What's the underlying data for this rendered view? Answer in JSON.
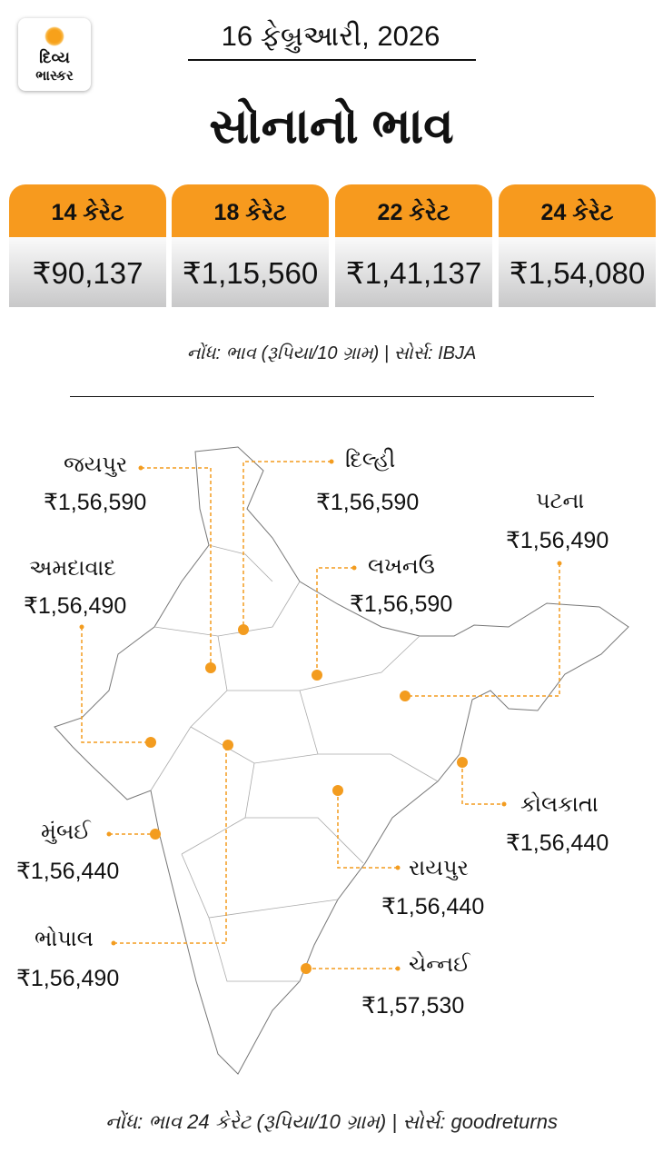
{
  "logo": {
    "line1": "દિવ્ય",
    "line2": "ભાસ્કર"
  },
  "date": "16 ફેબ્રુઆરી, 2026",
  "title": "સોનાનો ભાવ",
  "karats": [
    {
      "label": "14 કેરેટ",
      "price": "₹90,137"
    },
    {
      "label": "18 કેરેટ",
      "price": "₹1,15,560"
    },
    {
      "label": "22 કેરેટ",
      "price": "₹1,41,137"
    },
    {
      "label": "24 કેરેટ",
      "price": "₹1,54,080"
    }
  ],
  "note_top": "નોંધ: ભાવ (રૂપિયા/10 ગ્રામ) | સોર્સ: IBJA",
  "cities": [
    {
      "name": "જયપુર",
      "price": "₹1,56,590"
    },
    {
      "name": "દિલ્હી",
      "price": "₹1,56,590"
    },
    {
      "name": "પટના",
      "price": "₹1,56,490"
    },
    {
      "name": "અમદાવાદ",
      "price": "₹1,56,490"
    },
    {
      "name": "લખનઉ",
      "price": "₹1,56,590"
    },
    {
      "name": "મુંબઈ",
      "price": "₹1,56,440"
    },
    {
      "name": "ભોપાલ",
      "price": "₹1,56,490"
    },
    {
      "name": "કોલકાતા",
      "price": "₹1,56,440"
    },
    {
      "name": "રાયપુર",
      "price": "₹1,56,440"
    },
    {
      "name": "ચેન્નઈ",
      "price": "₹1,57,530"
    }
  ],
  "note_bottom": "નોંધ: ભાવ 24 કેરેટ (રૂપિયા/10 ગ્રામ) | સોર્સ: goodreturns",
  "colors": {
    "accent": "#f79a1e",
    "marker": "#f39c1f"
  }
}
